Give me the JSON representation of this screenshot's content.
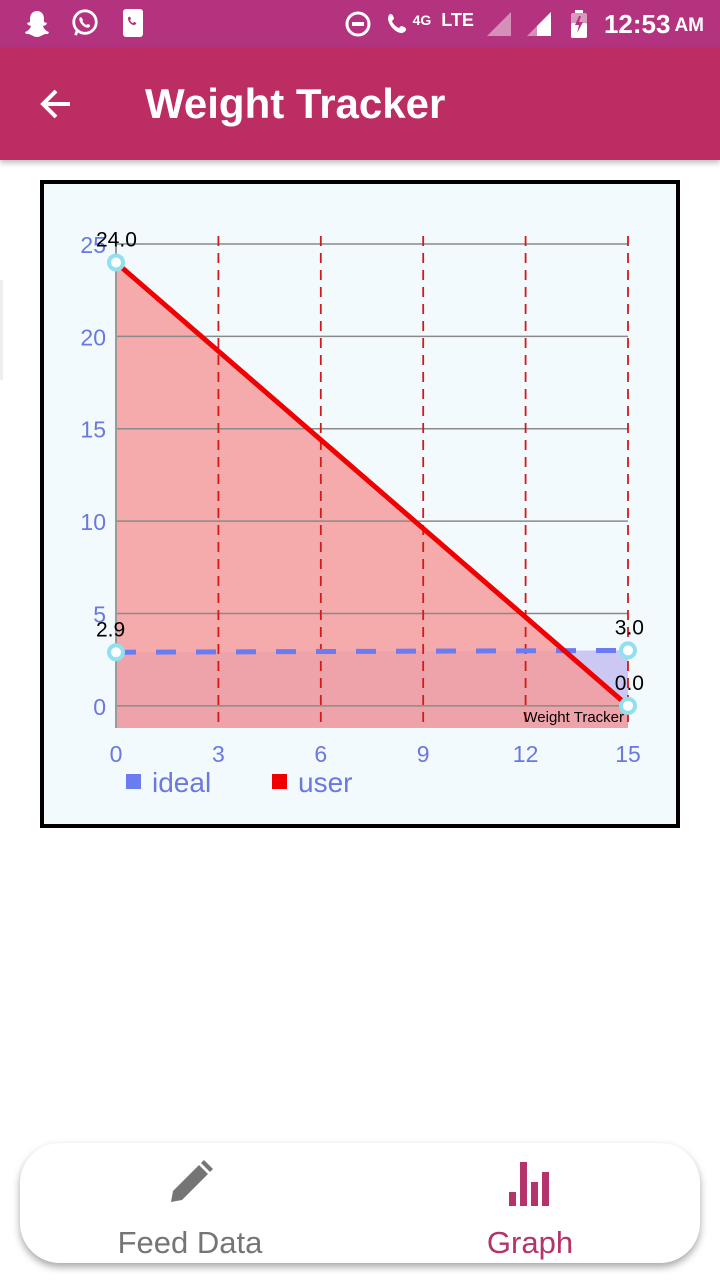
{
  "status_bar": {
    "left_icons": [
      "snapchat-icon",
      "whatsapp-icon",
      "phone-app-icon"
    ],
    "network_label": "4G",
    "lte_label": "LTE",
    "time": "12:53",
    "ampm": "AM"
  },
  "app_bar": {
    "title": "Weight Tracker"
  },
  "chart_data": {
    "type": "line",
    "description_label": "Weight Tracker",
    "x_ticks": [
      "0",
      "3",
      "6",
      "9",
      "12",
      "15"
    ],
    "y_ticks": [
      "0",
      "5",
      "10",
      "15",
      "20",
      "25"
    ],
    "xlim": [
      0,
      15
    ],
    "ylim": [
      -1.2,
      25
    ],
    "grid": true,
    "legend_position": "bottom-left",
    "series": [
      {
        "name": "ideal",
        "color": "#6b7cf2",
        "fill": "#c6c3f2",
        "style": "dashed",
        "x": [
          0,
          15
        ],
        "y": [
          2.9,
          3.0
        ],
        "point_labels": [
          "2.9",
          "3.0"
        ]
      },
      {
        "name": "user",
        "color": "#f00000",
        "fill": "#f59c9c",
        "style": "solid",
        "x": [
          0,
          15
        ],
        "y": [
          24.0,
          0.0
        ],
        "point_labels": [
          "24.0",
          "0.0"
        ]
      }
    ],
    "colors": {
      "axis_text": "#6a78e0",
      "grid_h": "#8a8a8a",
      "grid_v": "#d21a1a",
      "marker": "#90e0ef"
    }
  },
  "bottom_nav": {
    "items": [
      {
        "label": "Feed Data",
        "icon": "pencil-icon",
        "selected": false
      },
      {
        "label": "Graph",
        "icon": "bar-chart-icon",
        "selected": true
      }
    ]
  }
}
